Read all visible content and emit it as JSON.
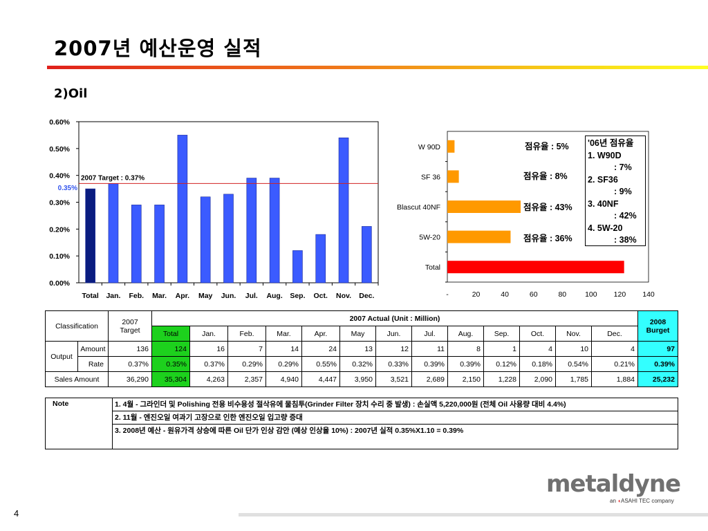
{
  "title": "2007년 예산운영 실적",
  "subtitle": "2)Oil",
  "page_number": "4",
  "colors": {
    "bar_blue": "#3b5bff",
    "bar_navy": "#0a1c80",
    "target_line": "#d02020",
    "orange": "#ff9900",
    "red": "#ff0000",
    "green": "#1dd11d",
    "cyan": "#33ffff"
  },
  "chart_data": [
    {
      "type": "bar",
      "categories": [
        "Total",
        "Jan.",
        "Feb.",
        "Mar.",
        "Apr.",
        "May",
        "Jun.",
        "Jul.",
        "Aug.",
        "Sep.",
        "Oct.",
        "Nov.",
        "Dec."
      ],
      "values": [
        0.35,
        0.37,
        0.29,
        0.29,
        0.55,
        0.32,
        0.33,
        0.39,
        0.39,
        0.12,
        0.18,
        0.54,
        0.21
      ],
      "ylim": [
        0,
        0.6
      ],
      "yticks": [
        "0.00%",
        "0.10%",
        "0.20%",
        "0.30%",
        "0.40%",
        "0.50%",
        "0.60%"
      ],
      "target_value": 0.37,
      "target_label": "2007 Target : 0.37%",
      "total_label": "0.35%"
    },
    {
      "type": "bar",
      "orientation": "horizontal",
      "categories": [
        "W 90D",
        "SF 36",
        "Blascut 40NF",
        "5W-20",
        "Total"
      ],
      "values": [
        5,
        8,
        51,
        44,
        123
      ],
      "xlim": [
        0,
        140
      ],
      "xticks": [
        "-",
        "20",
        "40",
        "60",
        "80",
        "100",
        "120",
        "140"
      ],
      "annotations": [
        "점유율 : 5%",
        "점유율 : 8%",
        "점유율 : 43%",
        "점유율 : 36%"
      ],
      "legend_lines": [
        "'06년 점유율",
        "1. W90D",
        ": 7%",
        "2. SF36",
        ": 9%",
        "3. 40NF",
        ": 42%",
        "4. 5W-20",
        ": 38%"
      ]
    }
  ],
  "table": {
    "classification": "Classification",
    "target_header": "2007 Target",
    "actual_header": "2007 Actual  (Unit : Million)",
    "budget_header": "2008 Burget",
    "months": [
      "Total",
      "Jan.",
      "Feb.",
      "Mar.",
      "Apr.",
      "May",
      "Jun.",
      "Jul.",
      "Aug.",
      "Sep.",
      "Oct.",
      "Nov.",
      "Dec."
    ],
    "output_label": "Output",
    "amount_label": "Amount",
    "rate_label": "Rate",
    "sales_label": "Sales Amount",
    "amount_row": [
      "136",
      "124",
      "16",
      "7",
      "14",
      "24",
      "13",
      "12",
      "11",
      "8",
      "1",
      "4",
      "10",
      "4",
      "97"
    ],
    "rate_row": [
      "0.37%",
      "0.35%",
      "0.37%",
      "0.29%",
      "0.29%",
      "0.55%",
      "0.32%",
      "0.33%",
      "0.39%",
      "0.39%",
      "0.12%",
      "0.18%",
      "0.54%",
      "0.21%",
      "0.39%"
    ],
    "sales_row": [
      "36,290",
      "35,304",
      "4,263",
      "2,357",
      "4,940",
      "4,447",
      "3,950",
      "3,521",
      "2,689",
      "2,150",
      "1,228",
      "2,090",
      "1,785",
      "1,884",
      "25,232"
    ]
  },
  "note": {
    "label": "Note",
    "lines": [
      "1. 4월 - 그라인더 및 Polishing 전용 비수용성 절삭유에 물침투(Grinder Filter 장치 수리 중 발생) : 손실액 5,220,000원 (전체 Oil 사용량 대비 4.4%)",
      "2. 11월 - 엔진오일 여과기 고장으로 인한 엔진오일 입고량 증대",
      "3. 2008년 예산 - 원유가격 상승에 따른 Oil 단가 인상 감안 (예상 인상율 10%) : 2007년 실적 0.35%X1.10 = 0.39%"
    ]
  },
  "logo": {
    "name": "metaldyne",
    "sub_prefix": "an",
    "sub_company": "ASAHI TEC",
    "sub_suffix": "company"
  }
}
